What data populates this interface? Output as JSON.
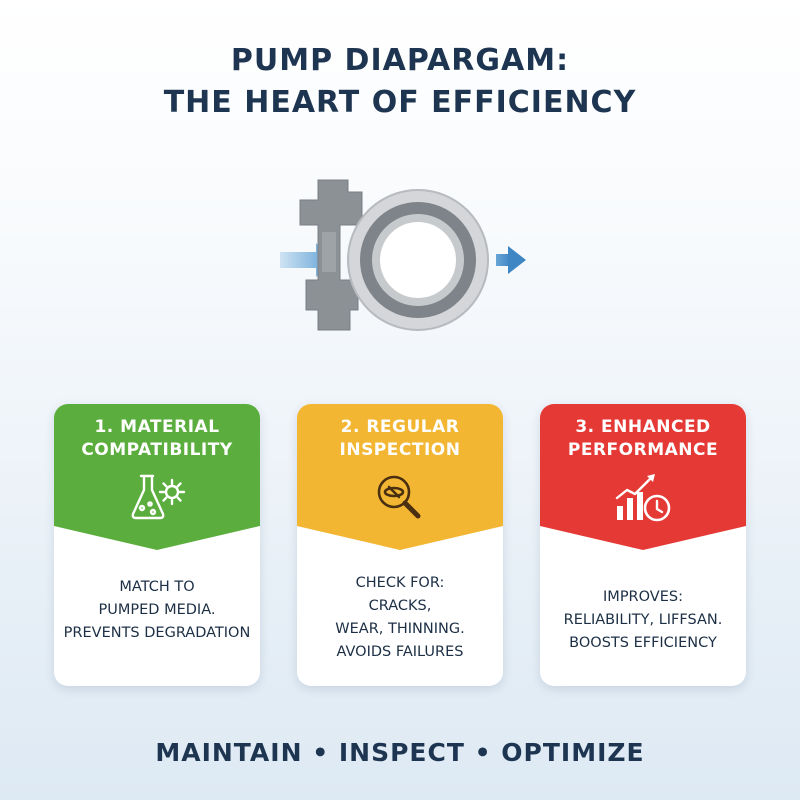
{
  "header": {
    "title_line1": "PUMP DIAPARGAM:",
    "title_line2": "THE HEART OF EFFICIENCY"
  },
  "illustration": {
    "icon": "pump-diaphragm-icon",
    "flow_icon": "flow-arrow-icon"
  },
  "cards": [
    {
      "title_line1": "1. MATERIAL",
      "title_line2": "COMPATIBILITY",
      "icon": "flask-gear-icon",
      "color": "#5bae3d",
      "body": [
        "MATCH TO",
        "PUMPED MEDIA.",
        "PREVENTS DEGRADATION"
      ]
    },
    {
      "title_line1": "2. REGULAR",
      "title_line2": "INSPECTION",
      "icon": "magnifier-icon",
      "color": "#f2b632",
      "body": [
        "CHECK FOR:",
        "CRACKS,",
        "WEAR, THINNING.",
        "AVOIDS FAILURES"
      ]
    },
    {
      "title_line1": "3. ENHANCED",
      "title_line2": "PERFORMANCE",
      "icon": "chart-clock-icon",
      "color": "#e53935",
      "body": [
        "IMPROVES:",
        "RELIABILITY, LIFFSAN.",
        "BOOSTS EFFICIENCY"
      ]
    }
  ],
  "footer": {
    "tagline": "MAINTAIN • INSPECT • OPTIMIZE"
  }
}
